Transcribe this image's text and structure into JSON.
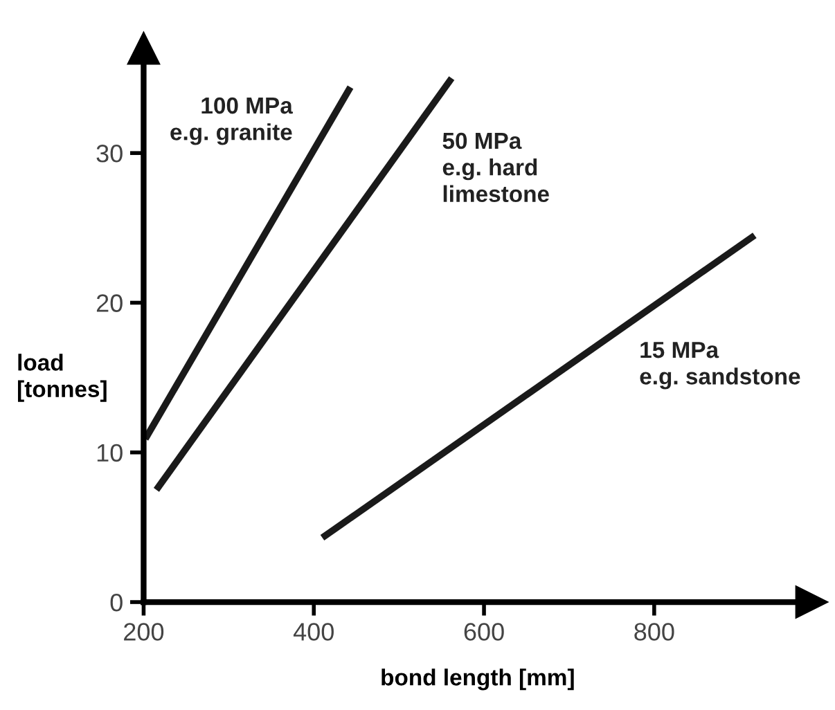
{
  "chart_data": {
    "type": "line",
    "xlabel": "bond length [mm]",
    "ylabel": "load\n[tonnes]",
    "series": [
      {
        "name": "100 MPa\ne.g. granite",
        "color": "#1a1a1a",
        "x": [
          202,
          443
        ],
        "values": [
          10.9,
          34.4
        ]
      },
      {
        "name": "50 MPa\ne.g. hard\nlimestone",
        "color": "#1a1a1a",
        "x": [
          215,
          562
        ],
        "values": [
          7.5,
          35.0
        ]
      },
      {
        "name": "15 MPa\ne.g. sandstone",
        "color": "#1a1a1a",
        "x": [
          410,
          918
        ],
        "values": [
          4.3,
          24.5
        ]
      }
    ],
    "xlim": [
      200,
      985
    ],
    "ylim": [
      0,
      37
    ],
    "xticks": [
      200,
      400,
      600,
      800
    ],
    "yticks": [
      0,
      10,
      20,
      30
    ],
    "grid": false,
    "legend": false,
    "marker": "none",
    "line_style": "solid"
  }
}
